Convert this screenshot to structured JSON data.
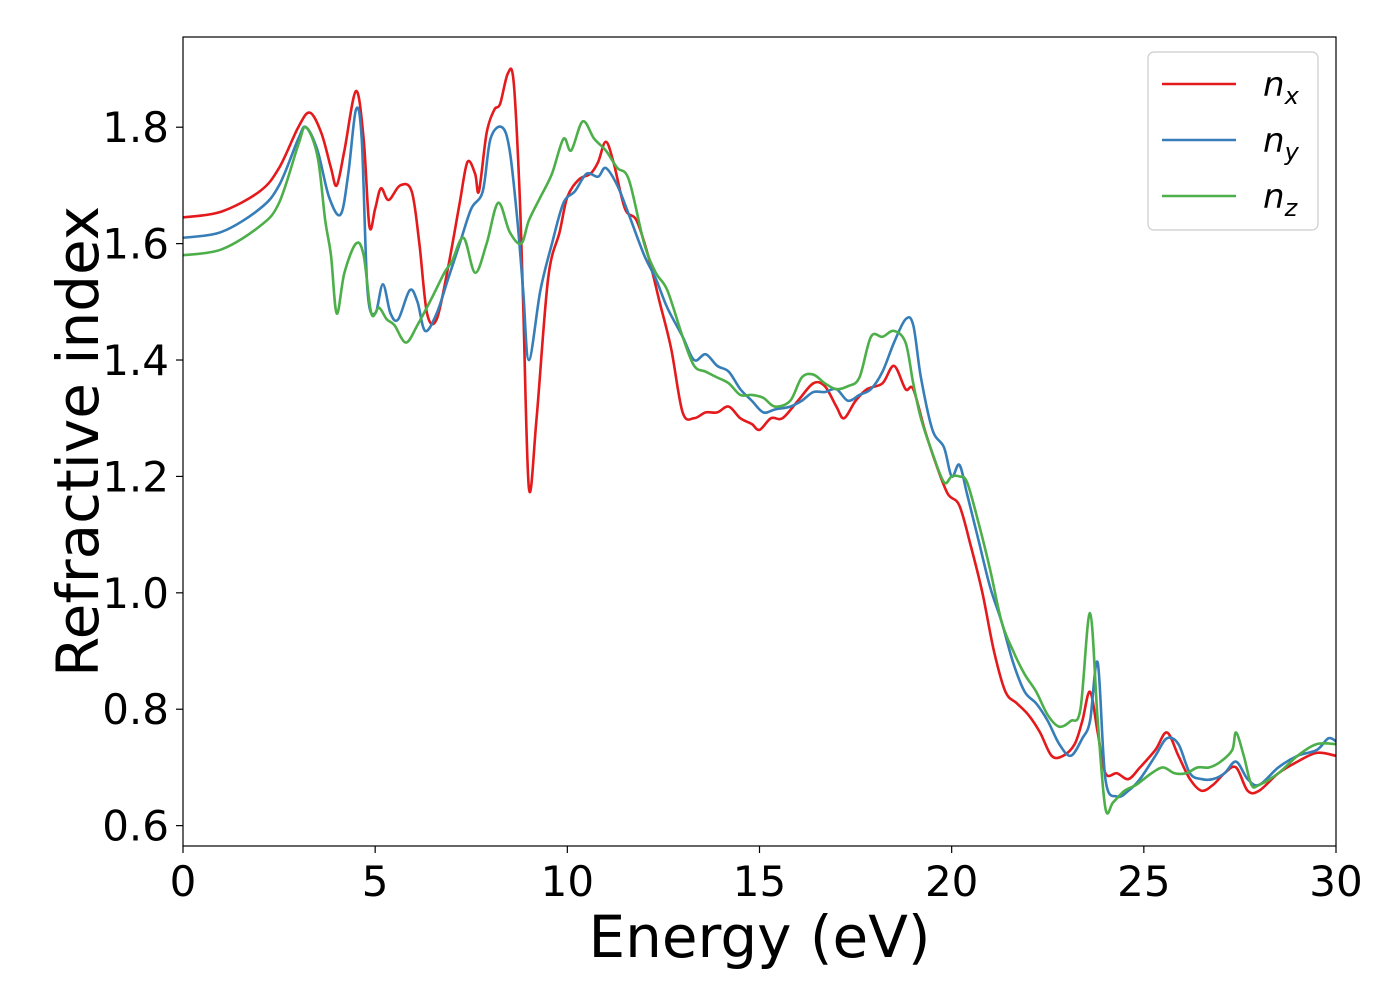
{
  "chart_data": {
    "type": "line",
    "title": "",
    "xlabel": "Energy (eV)",
    "ylabel": "Refractive index",
    "xlim": [
      0,
      30
    ],
    "ylim": [
      0.565,
      1.955
    ],
    "xticks": [
      0,
      5,
      10,
      15,
      20,
      25,
      30
    ],
    "xtick_labels": [
      "0",
      "5",
      "10",
      "15",
      "20",
      "25",
      "30"
    ],
    "yticks": [
      0.6,
      0.8,
      1.0,
      1.2,
      1.4,
      1.6,
      1.8
    ],
    "ytick_labels": [
      "0.6",
      "0.8",
      "1.0",
      "1.2",
      "1.4",
      "1.6",
      "1.8"
    ],
    "grid": false,
    "legend_position": "top-right",
    "series": [
      {
        "name": "n",
        "subscript": "x",
        "color": "#e41a1c",
        "x": [
          0,
          1,
          2,
          2.5,
          3.0,
          3.3,
          3.6,
          3.85,
          4.0,
          4.2,
          4.5,
          4.7,
          4.85,
          5.0,
          5.15,
          5.35,
          5.65,
          5.95,
          6.15,
          6.35,
          6.6,
          6.9,
          7.2,
          7.4,
          7.6,
          7.7,
          7.9,
          8.1,
          8.25,
          8.45,
          8.6,
          8.75,
          8.85,
          9.0,
          9.2,
          9.5,
          9.8,
          10.0,
          10.3,
          10.6,
          10.8,
          11.0,
          11.2,
          11.5,
          11.8,
          12.1,
          12.4,
          12.7,
          13.0,
          13.3,
          13.6,
          13.9,
          14.2,
          14.5,
          14.8,
          15.0,
          15.3,
          15.6,
          16.0,
          16.4,
          16.7,
          17.0,
          17.2,
          17.5,
          17.8,
          18.2,
          18.5,
          18.8,
          19.0,
          19.3,
          19.6,
          19.9,
          20.2,
          20.5,
          20.8,
          21.1,
          21.4,
          21.7,
          22.0,
          22.3,
          22.6,
          22.9,
          23.2,
          23.4,
          23.6,
          23.8,
          24.0,
          24.3,
          24.6,
          24.9,
          25.3,
          25.6,
          25.9,
          26.2,
          26.5,
          26.8,
          27.1,
          27.4,
          27.7,
          28.0,
          28.5,
          29.0,
          29.5,
          30.0
        ],
        "y": [
          1.645,
          1.655,
          1.69,
          1.73,
          1.8,
          1.825,
          1.79,
          1.73,
          1.7,
          1.76,
          1.862,
          1.78,
          1.63,
          1.66,
          1.695,
          1.675,
          1.7,
          1.69,
          1.6,
          1.48,
          1.47,
          1.56,
          1.67,
          1.74,
          1.72,
          1.69,
          1.79,
          1.83,
          1.84,
          1.892,
          1.88,
          1.7,
          1.5,
          1.18,
          1.3,
          1.54,
          1.62,
          1.68,
          1.71,
          1.72,
          1.74,
          1.775,
          1.74,
          1.66,
          1.64,
          1.58,
          1.5,
          1.42,
          1.31,
          1.3,
          1.31,
          1.31,
          1.32,
          1.3,
          1.29,
          1.28,
          1.3,
          1.3,
          1.33,
          1.36,
          1.355,
          1.32,
          1.3,
          1.33,
          1.35,
          1.36,
          1.39,
          1.35,
          1.35,
          1.28,
          1.22,
          1.17,
          1.15,
          1.08,
          1.0,
          0.9,
          0.83,
          0.81,
          0.79,
          0.76,
          0.72,
          0.72,
          0.74,
          0.78,
          0.83,
          0.76,
          0.69,
          0.69,
          0.68,
          0.7,
          0.73,
          0.76,
          0.72,
          0.68,
          0.66,
          0.67,
          0.69,
          0.7,
          0.66,
          0.66,
          0.69,
          0.71,
          0.725,
          0.72
        ]
      },
      {
        "name": "n",
        "subscript": "y",
        "color": "#377eb8",
        "x": [
          0,
          1,
          2,
          2.5,
          3.0,
          3.2,
          3.5,
          3.8,
          4.1,
          4.3,
          4.5,
          4.65,
          4.8,
          5.0,
          5.2,
          5.4,
          5.6,
          5.9,
          6.1,
          6.3,
          6.6,
          6.9,
          7.2,
          7.5,
          7.8,
          8.0,
          8.3,
          8.5,
          8.7,
          8.85,
          9.0,
          9.3,
          9.6,
          9.9,
          10.2,
          10.5,
          10.8,
          11.0,
          11.3,
          11.6,
          12.0,
          12.3,
          12.6,
          13.0,
          13.3,
          13.6,
          13.9,
          14.2,
          14.5,
          14.8,
          15.1,
          15.4,
          15.8,
          16.1,
          16.4,
          16.7,
          17.0,
          17.3,
          17.6,
          17.9,
          18.2,
          18.5,
          18.8,
          19.0,
          19.2,
          19.5,
          19.8,
          20.0,
          20.2,
          20.4,
          20.7,
          21.0,
          21.3,
          21.6,
          21.9,
          22.2,
          22.5,
          22.8,
          23.1,
          23.4,
          23.6,
          23.8,
          24.0,
          24.3,
          24.6,
          24.9,
          25.3,
          25.6,
          25.9,
          26.2,
          26.5,
          26.8,
          27.1,
          27.4,
          27.7,
          28.0,
          28.5,
          29.0,
          29.5,
          29.8,
          30.0
        ],
        "y": [
          1.61,
          1.62,
          1.66,
          1.7,
          1.78,
          1.8,
          1.76,
          1.68,
          1.65,
          1.72,
          1.83,
          1.78,
          1.52,
          1.48,
          1.53,
          1.48,
          1.47,
          1.52,
          1.5,
          1.45,
          1.48,
          1.54,
          1.6,
          1.66,
          1.69,
          1.78,
          1.8,
          1.76,
          1.64,
          1.52,
          1.4,
          1.52,
          1.6,
          1.67,
          1.69,
          1.72,
          1.715,
          1.73,
          1.7,
          1.65,
          1.58,
          1.54,
          1.49,
          1.44,
          1.4,
          1.41,
          1.39,
          1.38,
          1.35,
          1.33,
          1.31,
          1.315,
          1.32,
          1.33,
          1.345,
          1.345,
          1.35,
          1.33,
          1.34,
          1.35,
          1.38,
          1.43,
          1.47,
          1.46,
          1.37,
          1.28,
          1.25,
          1.2,
          1.22,
          1.17,
          1.09,
          1.01,
          0.95,
          0.88,
          0.83,
          0.81,
          0.78,
          0.74,
          0.72,
          0.75,
          0.78,
          0.88,
          0.68,
          0.65,
          0.66,
          0.68,
          0.72,
          0.75,
          0.74,
          0.69,
          0.68,
          0.68,
          0.69,
          0.71,
          0.68,
          0.67,
          0.7,
          0.72,
          0.73,
          0.75,
          0.745
        ]
      },
      {
        "name": "n",
        "subscript": "z",
        "color": "#4daf4a",
        "x": [
          0,
          1,
          2,
          2.5,
          3.0,
          3.2,
          3.5,
          3.7,
          3.85,
          4.0,
          4.2,
          4.5,
          4.7,
          4.9,
          5.1,
          5.3,
          5.5,
          5.8,
          6.1,
          6.5,
          6.8,
          7.0,
          7.3,
          7.6,
          7.9,
          8.2,
          8.5,
          8.8,
          9.0,
          9.3,
          9.6,
          9.9,
          10.1,
          10.4,
          10.7,
          11.0,
          11.3,
          11.6,
          12.0,
          12.3,
          12.6,
          13.0,
          13.3,
          13.6,
          13.9,
          14.2,
          14.5,
          14.8,
          15.1,
          15.4,
          15.8,
          16.1,
          16.4,
          16.7,
          17.0,
          17.3,
          17.6,
          17.9,
          18.2,
          18.5,
          18.8,
          19.0,
          19.2,
          19.5,
          19.8,
          20.0,
          20.2,
          20.4,
          20.7,
          21.0,
          21.3,
          21.6,
          21.9,
          22.2,
          22.5,
          22.8,
          23.1,
          23.35,
          23.6,
          23.8,
          24.0,
          24.2,
          24.5,
          24.8,
          25.2,
          25.5,
          25.8,
          26.1,
          26.4,
          26.7,
          27.0,
          27.3,
          27.4,
          27.6,
          27.8,
          28.0,
          28.5,
          29.0,
          29.5,
          30.0
        ],
        "y": [
          1.58,
          1.59,
          1.63,
          1.67,
          1.77,
          1.8,
          1.75,
          1.64,
          1.58,
          1.48,
          1.55,
          1.6,
          1.58,
          1.48,
          1.49,
          1.47,
          1.46,
          1.43,
          1.46,
          1.51,
          1.55,
          1.57,
          1.61,
          1.55,
          1.6,
          1.67,
          1.62,
          1.6,
          1.64,
          1.68,
          1.72,
          1.78,
          1.76,
          1.81,
          1.78,
          1.76,
          1.73,
          1.71,
          1.6,
          1.55,
          1.52,
          1.44,
          1.39,
          1.38,
          1.37,
          1.36,
          1.34,
          1.34,
          1.335,
          1.32,
          1.33,
          1.37,
          1.375,
          1.36,
          1.35,
          1.355,
          1.37,
          1.44,
          1.44,
          1.45,
          1.43,
          1.36,
          1.3,
          1.24,
          1.19,
          1.2,
          1.2,
          1.19,
          1.12,
          1.04,
          0.95,
          0.9,
          0.86,
          0.83,
          0.79,
          0.77,
          0.78,
          0.8,
          0.965,
          0.78,
          0.63,
          0.64,
          0.66,
          0.67,
          0.69,
          0.7,
          0.69,
          0.69,
          0.7,
          0.7,
          0.71,
          0.73,
          0.76,
          0.72,
          0.67,
          0.67,
          0.69,
          0.72,
          0.74,
          0.74
        ]
      }
    ]
  }
}
